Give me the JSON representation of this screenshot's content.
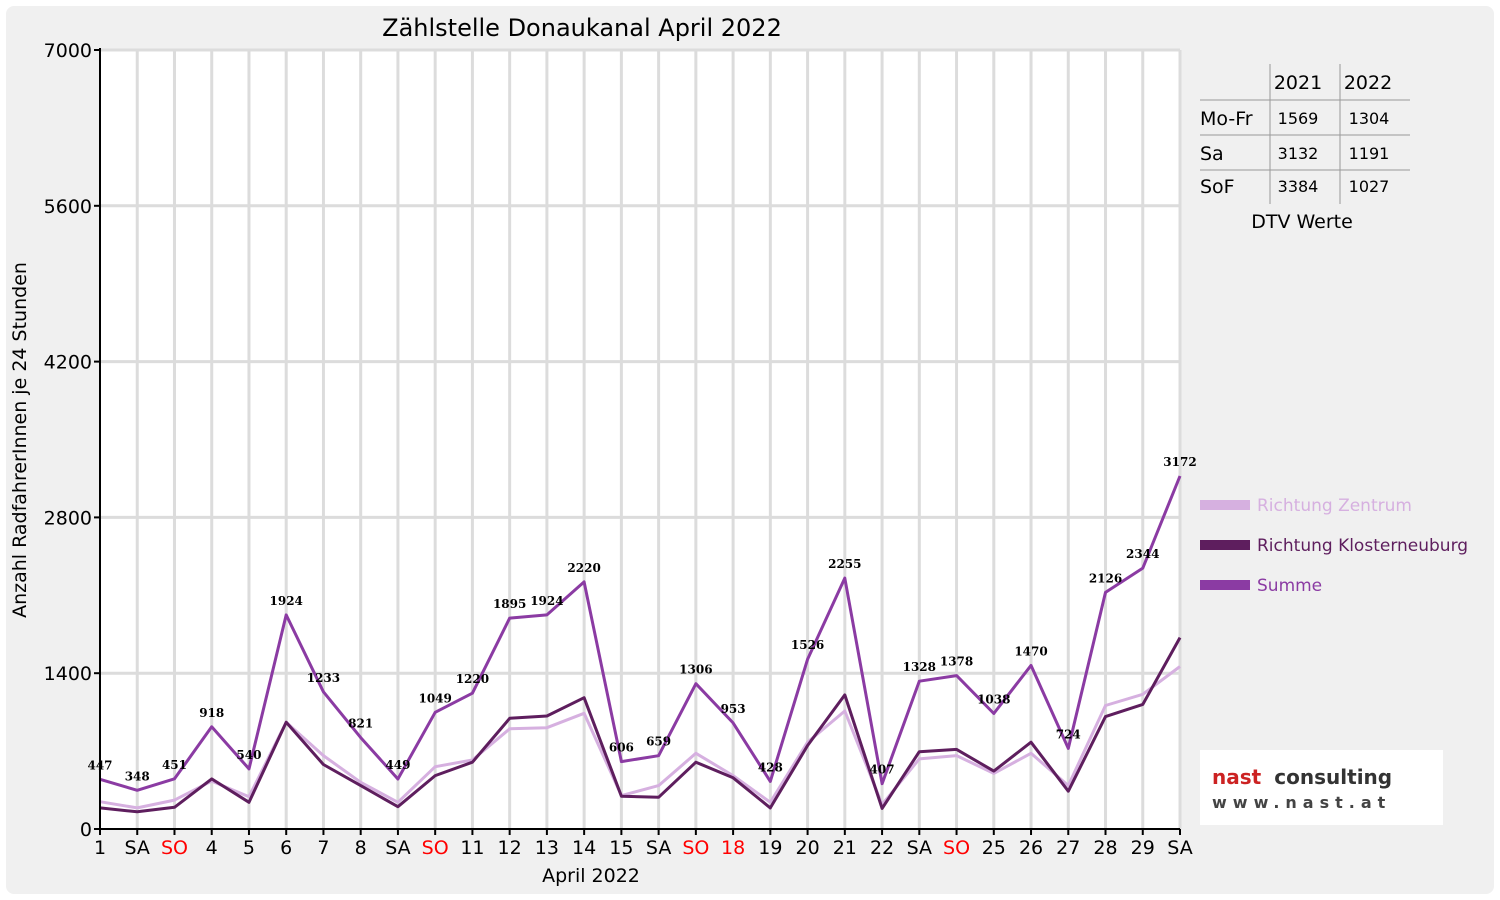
{
  "chart_data": {
    "type": "line",
    "title": "Zählstelle Donaukanal April 2022",
    "xlabel": "April 2022",
    "ylabel": "Anzahl RadfahrerInnen je 24 Stunden",
    "ylim": [
      0,
      7000
    ],
    "yticks": [
      "0",
      "1400",
      "2800",
      "4200",
      "5600",
      "7000"
    ],
    "grid": true,
    "legend_position": "right",
    "categories": [
      "1",
      "SA",
      "SO",
      "4",
      "5",
      "6",
      "7",
      "8",
      "SA",
      "SO",
      "11",
      "12",
      "13",
      "14",
      "15",
      "SA",
      "SO",
      "18",
      "19",
      "20",
      "21",
      "22",
      "SA",
      "SO",
      "25",
      "26",
      "27",
      "28",
      "29",
      "SA"
    ],
    "category_colors": [
      "#000000",
      "#000000",
      "#ff0000",
      "#000000",
      "#000000",
      "#000000",
      "#000000",
      "#000000",
      "#000000",
      "#ff0000",
      "#000000",
      "#000000",
      "#000000",
      "#000000",
      "#000000",
      "#000000",
      "#ff0000",
      "#ff0000",
      "#000000",
      "#000000",
      "#000000",
      "#000000",
      "#000000",
      "#ff0000",
      "#000000",
      "#000000",
      "#000000",
      "#000000",
      "#000000",
      "#000000"
    ],
    "series": [
      {
        "name": "Richtung Zentrum",
        "color": "#d6b0e0",
        "values": [
          245,
          190,
          260,
          430,
          290,
          960,
          660,
          420,
          240,
          560,
          620,
          900,
          910,
          1040,
          300,
          390,
          680,
          480,
          240,
          780,
          1060,
          220,
          630,
          660,
          500,
          680,
          390,
          1110,
          1210,
          1460
        ]
      },
      {
        "name": "Richtung Klosterneuburg",
        "color": "#5e1e5e",
        "values": [
          190,
          155,
          195,
          450,
          240,
          960,
          580,
          390,
          200,
          480,
          600,
          995,
          1015,
          1180,
          295,
          285,
          600,
          460,
          190,
          750,
          1205,
          185,
          695,
          715,
          520,
          780,
          340,
          1010,
          1120,
          1720
        ]
      },
      {
        "name": "Summe",
        "color": "#8b3ba3",
        "values": [
          447,
          348,
          451,
          918,
          540,
          1924,
          1233,
          821,
          449,
          1049,
          1220,
          1895,
          1924,
          2220,
          606,
          659,
          1306,
          953,
          428,
          1526,
          2255,
          407,
          1328,
          1378,
          1038,
          1470,
          724,
          2126,
          2344,
          3172
        ]
      }
    ],
    "data_labels": [
      "447",
      "348",
      "451",
      "918",
      "540",
      "1924",
      "1233",
      "821",
      "449",
      "1049",
      "1220",
      "1895",
      "1924",
      "2220",
      "606",
      "659",
      "1306",
      "953",
      "428",
      "1526",
      "2255",
      "407",
      "1328",
      "1378",
      "1038",
      "1470",
      "724",
      "2126",
      "2344",
      "3172"
    ]
  },
  "dtv_table": {
    "col_headers": [
      "2021",
      "2022"
    ],
    "rows": [
      {
        "label": "Mo-Fr",
        "v2021": "1569",
        "v2022": "1304"
      },
      {
        "label": "Sa",
        "v2021": "3132",
        "v2022": "1191"
      },
      {
        "label": "SoF",
        "v2021": "3384",
        "v2022": "1027"
      }
    ],
    "caption": "DTV Werte"
  },
  "logo": {
    "word1": "nast",
    "word2": "consulting",
    "url": "www.nast.at",
    "red": "#cc2222",
    "dark": "#333333"
  }
}
